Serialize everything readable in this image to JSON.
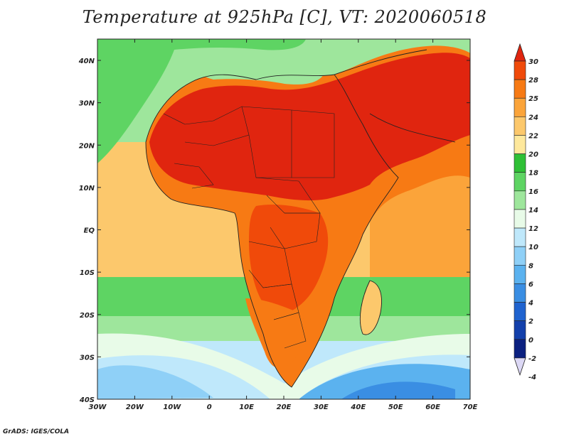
{
  "title": "Temperature at 925hPa [C], VT: 2020060518",
  "credit": "GrADS: IGES/COLA",
  "lon_ticks": [
    "30W",
    "20W",
    "10W",
    "0",
    "10E",
    "20E",
    "30E",
    "40E",
    "50E",
    "60E",
    "70E"
  ],
  "lat_ticks": [
    "40N",
    "30N",
    "20N",
    "10N",
    "EQ",
    "10S",
    "20S",
    "30S",
    "40S"
  ],
  "colorbar": {
    "labels": [
      "30",
      "28",
      "25",
      "24",
      "22",
      "20",
      "18",
      "16",
      "14",
      "12",
      "10",
      "8",
      "6",
      "4",
      "2",
      "0",
      "-2",
      "-4"
    ],
    "colors": [
      "#e0250f",
      "#f04a0a",
      "#f77a14",
      "#fba43a",
      "#fcc86c",
      "#fee89c",
      "#2fc036",
      "#5ed463",
      "#9ee69c",
      "#e8fbe8",
      "#bfe8fb",
      "#8fd0f7",
      "#5bb2ef",
      "#3a8ee3",
      "#1f63cf",
      "#1340ab",
      "#0b2080",
      "#dcd8f5"
    ]
  },
  "colors": {
    "hot": "#e0250f",
    "warm": "#f04a0a",
    "orange": "#f77a14",
    "light_orange": "#fba43a",
    "tan": "#fcc86c",
    "pale_yellow": "#fee89c",
    "green": "#2fc036",
    "light_green": "#9ee69c",
    "pale": "#e8fbe8",
    "sky": "#bfe8fb",
    "blue": "#5bb2ef",
    "deep_blue": "#3a8ee3"
  }
}
